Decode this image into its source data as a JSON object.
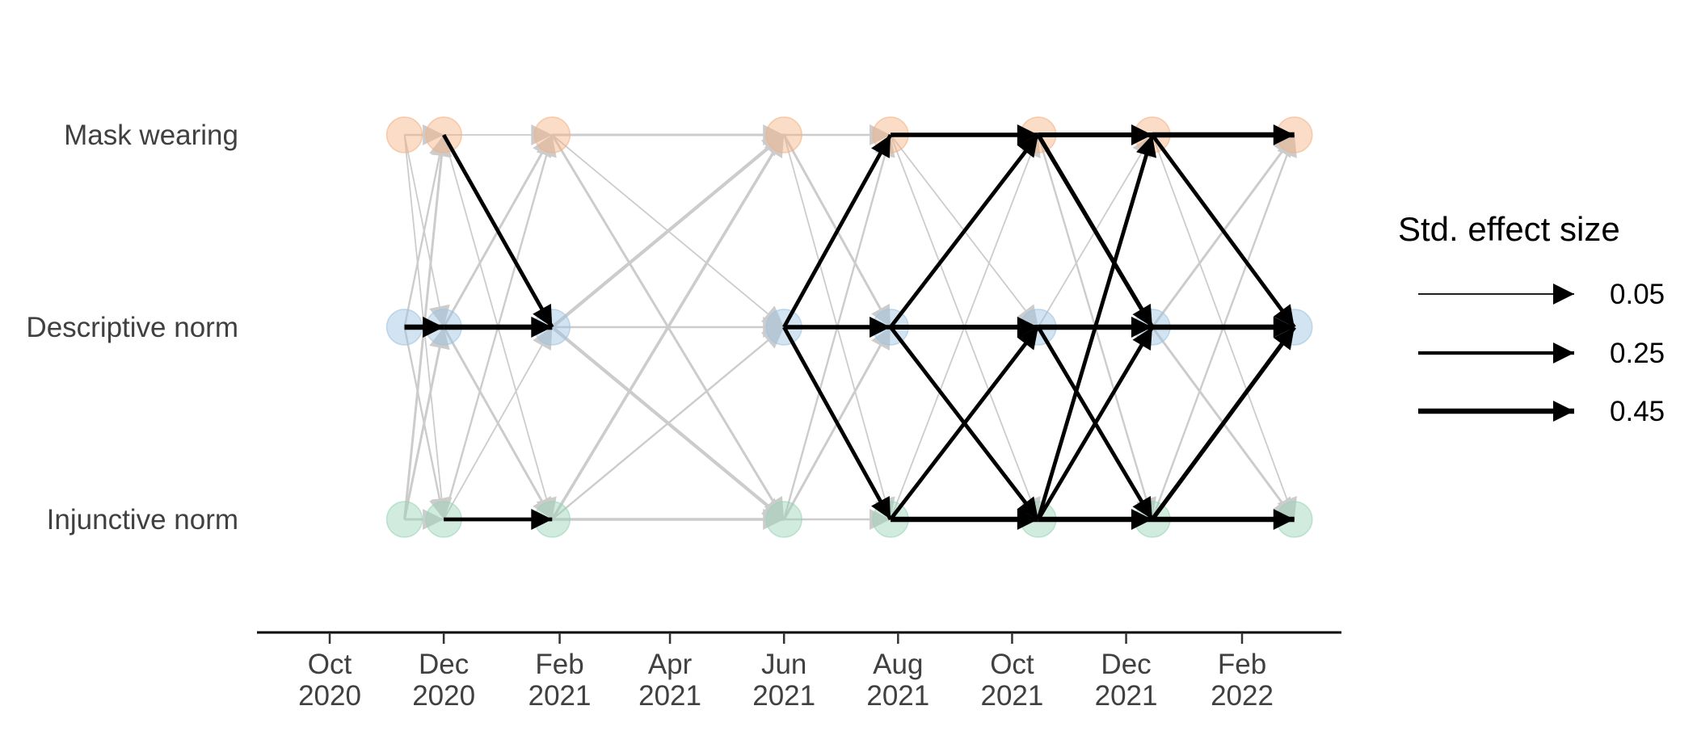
{
  "chart_data": {
    "type": "network",
    "title": "",
    "xlabel": "",
    "ylabel": "",
    "x_axis": {
      "ticks": [
        {
          "date": "2020-10-01",
          "label": [
            "Oct",
            "2020"
          ]
        },
        {
          "date": "2020-12-01",
          "label": [
            "Dec",
            "2020"
          ]
        },
        {
          "date": "2021-02-01",
          "label": [
            "Feb",
            "2021"
          ]
        },
        {
          "date": "2021-04-01",
          "label": [
            "Apr",
            "2021"
          ]
        },
        {
          "date": "2021-06-01",
          "label": [
            "Jun",
            "2021"
          ]
        },
        {
          "date": "2021-08-01",
          "label": [
            "Aug",
            "2021"
          ]
        },
        {
          "date": "2021-10-01",
          "label": [
            "Oct",
            "2021"
          ]
        },
        {
          "date": "2021-12-01",
          "label": [
            "Dec",
            "2021"
          ]
        },
        {
          "date": "2022-02-01",
          "label": [
            "Feb",
            "2022"
          ]
        }
      ],
      "range": [
        "2020-08-15",
        "2022-05-01"
      ]
    },
    "variables": [
      {
        "id": "mask",
        "label": "Mask wearing",
        "color": "#f4b183"
      },
      {
        "id": "desc",
        "label": "Descriptive norm",
        "color": "#9cc3e1"
      },
      {
        "id": "inj",
        "label": "Injunctive norm",
        "color": "#98d4b8"
      }
    ],
    "waves": [
      "2020-11-10",
      "2020-12-01",
      "2021-01-28",
      "2021-06-01",
      "2021-07-28",
      "2021-10-15",
      "2021-12-15",
      "2022-03-01"
    ],
    "significant_color": "#000000",
    "nonsignificant_color": "#cccccc",
    "edges": [
      {
        "from_wave": 0,
        "from": "mask",
        "to": "mask",
        "effect": 0.1,
        "significant": false
      },
      {
        "from_wave": 0,
        "from": "mask",
        "to": "desc",
        "effect": 0.05,
        "significant": false
      },
      {
        "from_wave": 0,
        "from": "mask",
        "to": "inj",
        "effect": 0.05,
        "significant": false
      },
      {
        "from_wave": 0,
        "from": "desc",
        "to": "mask",
        "effect": 0.1,
        "significant": false
      },
      {
        "from_wave": 0,
        "from": "desc",
        "to": "desc",
        "effect": 0.45,
        "significant": true
      },
      {
        "from_wave": 0,
        "from": "desc",
        "to": "inj",
        "effect": 0.1,
        "significant": false
      },
      {
        "from_wave": 0,
        "from": "inj",
        "to": "mask",
        "effect": 0.15,
        "significant": false
      },
      {
        "from_wave": 0,
        "from": "inj",
        "to": "desc",
        "effect": 0.15,
        "significant": false
      },
      {
        "from_wave": 0,
        "from": "inj",
        "to": "inj",
        "effect": 0.15,
        "significant": false
      },
      {
        "from_wave": 1,
        "from": "mask",
        "to": "mask",
        "effect": 0.05,
        "significant": false
      },
      {
        "from_wave": 1,
        "from": "mask",
        "to": "desc",
        "effect": 0.3,
        "significant": true
      },
      {
        "from_wave": 1,
        "from": "mask",
        "to": "inj",
        "effect": 0.05,
        "significant": false
      },
      {
        "from_wave": 1,
        "from": "desc",
        "to": "mask",
        "effect": 0.15,
        "significant": false
      },
      {
        "from_wave": 1,
        "from": "desc",
        "to": "desc",
        "effect": 0.45,
        "significant": true
      },
      {
        "from_wave": 1,
        "from": "desc",
        "to": "inj",
        "effect": 0.15,
        "significant": false
      },
      {
        "from_wave": 1,
        "from": "inj",
        "to": "mask",
        "effect": 0.1,
        "significant": false
      },
      {
        "from_wave": 1,
        "from": "inj",
        "to": "desc",
        "effect": 0.05,
        "significant": false
      },
      {
        "from_wave": 1,
        "from": "inj",
        "to": "inj",
        "effect": 0.3,
        "significant": true
      },
      {
        "from_wave": 2,
        "from": "mask",
        "to": "mask",
        "effect": 0.15,
        "significant": false
      },
      {
        "from_wave": 2,
        "from": "mask",
        "to": "desc",
        "effect": 0.05,
        "significant": false
      },
      {
        "from_wave": 2,
        "from": "mask",
        "to": "inj",
        "effect": 0.15,
        "significant": false
      },
      {
        "from_wave": 2,
        "from": "desc",
        "to": "mask",
        "effect": 0.25,
        "significant": false
      },
      {
        "from_wave": 2,
        "from": "desc",
        "to": "desc",
        "effect": 0.1,
        "significant": false
      },
      {
        "from_wave": 2,
        "from": "desc",
        "to": "inj",
        "effect": 0.25,
        "significant": false
      },
      {
        "from_wave": 2,
        "from": "inj",
        "to": "mask",
        "effect": 0.2,
        "significant": false
      },
      {
        "from_wave": 2,
        "from": "inj",
        "to": "desc",
        "effect": 0.1,
        "significant": false
      },
      {
        "from_wave": 2,
        "from": "inj",
        "to": "inj",
        "effect": 0.2,
        "significant": false
      },
      {
        "from_wave": 3,
        "from": "mask",
        "to": "mask",
        "effect": 0.1,
        "significant": false
      },
      {
        "from_wave": 3,
        "from": "mask",
        "to": "desc",
        "effect": 0.15,
        "significant": false
      },
      {
        "from_wave": 3,
        "from": "mask",
        "to": "inj",
        "effect": 0.05,
        "significant": false
      },
      {
        "from_wave": 3,
        "from": "desc",
        "to": "mask",
        "effect": 0.3,
        "significant": true
      },
      {
        "from_wave": 3,
        "from": "desc",
        "to": "desc",
        "effect": 0.35,
        "significant": true
      },
      {
        "from_wave": 3,
        "from": "desc",
        "to": "inj",
        "effect": 0.3,
        "significant": true
      },
      {
        "from_wave": 3,
        "from": "inj",
        "to": "mask",
        "effect": 0.1,
        "significant": false
      },
      {
        "from_wave": 3,
        "from": "inj",
        "to": "desc",
        "effect": 0.15,
        "significant": false
      },
      {
        "from_wave": 3,
        "from": "inj",
        "to": "inj",
        "effect": 0.1,
        "significant": false
      },
      {
        "from_wave": 4,
        "from": "mask",
        "to": "mask",
        "effect": 0.35,
        "significant": true
      },
      {
        "from_wave": 4,
        "from": "mask",
        "to": "desc",
        "effect": 0.05,
        "significant": false
      },
      {
        "from_wave": 4,
        "from": "mask",
        "to": "inj",
        "effect": 0.05,
        "significant": false
      },
      {
        "from_wave": 4,
        "from": "desc",
        "to": "mask",
        "effect": 0.3,
        "significant": true
      },
      {
        "from_wave": 4,
        "from": "desc",
        "to": "desc",
        "effect": 0.4,
        "significant": true
      },
      {
        "from_wave": 4,
        "from": "desc",
        "to": "inj",
        "effect": 0.3,
        "significant": true
      },
      {
        "from_wave": 4,
        "from": "inj",
        "to": "mask",
        "effect": 0.05,
        "significant": false
      },
      {
        "from_wave": 4,
        "from": "inj",
        "to": "desc",
        "effect": 0.3,
        "significant": true
      },
      {
        "from_wave": 4,
        "from": "inj",
        "to": "inj",
        "effect": 0.45,
        "significant": true
      },
      {
        "from_wave": 5,
        "from": "mask",
        "to": "mask",
        "effect": 0.4,
        "significant": true
      },
      {
        "from_wave": 5,
        "from": "mask",
        "to": "desc",
        "effect": 0.35,
        "significant": true
      },
      {
        "from_wave": 5,
        "from": "mask",
        "to": "inj",
        "effect": 0.1,
        "significant": false
      },
      {
        "from_wave": 5,
        "from": "desc",
        "to": "mask",
        "effect": 0.05,
        "significant": false
      },
      {
        "from_wave": 5,
        "from": "desc",
        "to": "desc",
        "effect": 0.45,
        "significant": true
      },
      {
        "from_wave": 5,
        "from": "desc",
        "to": "inj",
        "effect": 0.3,
        "significant": true
      },
      {
        "from_wave": 5,
        "from": "inj",
        "to": "mask",
        "effect": 0.3,
        "significant": true
      },
      {
        "from_wave": 5,
        "from": "inj",
        "to": "desc",
        "effect": 0.3,
        "significant": true
      },
      {
        "from_wave": 5,
        "from": "inj",
        "to": "inj",
        "effect": 0.45,
        "significant": true
      },
      {
        "from_wave": 6,
        "from": "mask",
        "to": "mask",
        "effect": 0.45,
        "significant": true
      },
      {
        "from_wave": 6,
        "from": "mask",
        "to": "desc",
        "effect": 0.3,
        "significant": true
      },
      {
        "from_wave": 6,
        "from": "mask",
        "to": "inj",
        "effect": 0.05,
        "significant": false
      },
      {
        "from_wave": 6,
        "from": "desc",
        "to": "mask",
        "effect": 0.15,
        "significant": false
      },
      {
        "from_wave": 6,
        "from": "desc",
        "to": "desc",
        "effect": 0.45,
        "significant": true
      },
      {
        "from_wave": 6,
        "from": "desc",
        "to": "inj",
        "effect": 0.15,
        "significant": false
      },
      {
        "from_wave": 6,
        "from": "inj",
        "to": "mask",
        "effect": 0.1,
        "significant": false
      },
      {
        "from_wave": 6,
        "from": "inj",
        "to": "desc",
        "effect": 0.35,
        "significant": true
      },
      {
        "from_wave": 6,
        "from": "inj",
        "to": "inj",
        "effect": 0.45,
        "significant": true
      }
    ],
    "legend": {
      "title": "Std. effect size",
      "position": "right",
      "entries": [
        {
          "label": "0.05",
          "effect": 0.05
        },
        {
          "label": "0.25",
          "effect": 0.25
        },
        {
          "label": "0.45",
          "effect": 0.45
        }
      ]
    },
    "grid": false
  }
}
